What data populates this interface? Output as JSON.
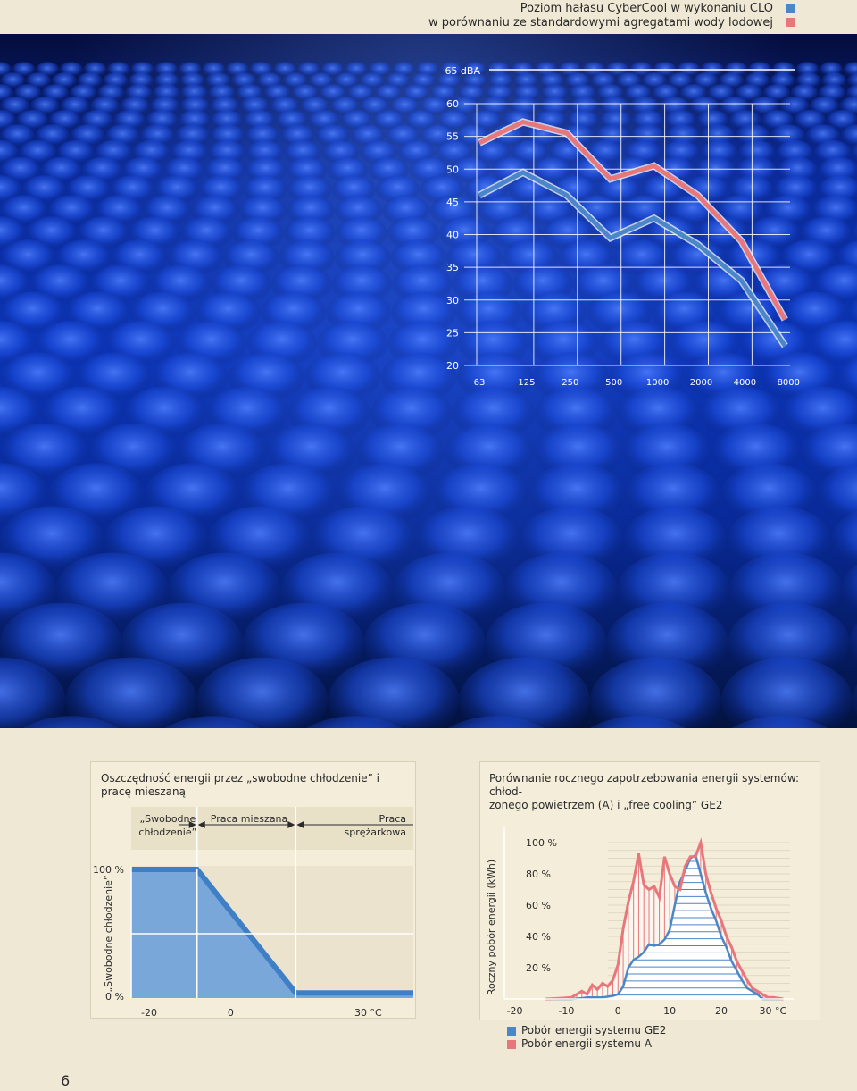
{
  "header": {
    "title_line1": "Poziom hałasu CyberCool w wykonaniu CLO",
    "title_line2": "w porównaniu ze standardowymi agregatami wody lodowej",
    "legend_colors": [
      "#4a86c8",
      "#e8767a"
    ]
  },
  "page_number": "6",
  "chart_data": [
    {
      "type": "line",
      "title": "Poziom hałasu CyberCool w wykonaniu CLO w porównaniu ze standardowymi agregatami wody lodowej",
      "ylabel_top": "65 dBA",
      "x": [
        "63",
        "125",
        "250",
        "500",
        "1000",
        "2000",
        "4000",
        "8000"
      ],
      "y_ticks": [
        60,
        55,
        50,
        45,
        40,
        35,
        30,
        25,
        20
      ],
      "ylim": [
        20,
        65
      ],
      "series": [
        {
          "color": "#e8767a",
          "values": [
            54,
            57.2,
            55.5,
            48.5,
            50.5,
            46,
            39,
            27
          ]
        },
        {
          "color": "#4a86c8",
          "values": [
            46,
            49.5,
            46,
            39.5,
            42.5,
            38.5,
            33,
            23
          ]
        }
      ]
    },
    {
      "type": "area",
      "title_line1": "Oszczędność energii przez „swobodne chłodzenie” i",
      "title_line2": "pracę mieszaną",
      "ylabel": "„Swobodne chłodzenie”",
      "y_ticks": [
        "100 %",
        "0 %"
      ],
      "x_ticks": [
        "-20",
        "0",
        "30 °C"
      ],
      "xlim": [
        -20,
        40
      ],
      "regions": [
        {
          "label_line1": "„Swobodne",
          "label_line2": "chłodzenie”"
        },
        {
          "label_line1": "Praca mieszana",
          "label_line2": ""
        },
        {
          "label_line1": "Praca",
          "label_line2": "sprężarkowa"
        }
      ],
      "x": [
        -20,
        -6,
        15,
        40
      ],
      "values": [
        100,
        100,
        4,
        4
      ]
    },
    {
      "type": "area",
      "title_line1": "Porównanie rocznego zapotrzebowania energii systemów: chłod-",
      "title_line2": "zonego powietrzem (A) i „free cooling” GE2",
      "ylabel": "Roczny pobór energii (kWh)",
      "y_ticks": [
        "100 %",
        "80 %",
        "60 %",
        "40 %",
        "20 %"
      ],
      "x_ticks": [
        "-20",
        "-10",
        "0",
        "10",
        "20",
        "30 °C"
      ],
      "xlim": [
        -22,
        34
      ],
      "ylim": [
        0,
        100
      ],
      "x": [
        -14,
        -11,
        -9,
        -7,
        -6,
        -5,
        -4,
        -3,
        -2,
        -1,
        0,
        1,
        2,
        3,
        4,
        5,
        6,
        7,
        8,
        9,
        10,
        11,
        12,
        13,
        14,
        15,
        16,
        17,
        18,
        19,
        20,
        21,
        22,
        23,
        24,
        25,
        26,
        27,
        28,
        29,
        30,
        32
      ],
      "series": [
        {
          "name": "Pobór energii systemu GE2",
          "color": "#4a86c8",
          "values": [
            0,
            0,
            0,
            0.5,
            1,
            1,
            1,
            1,
            1.5,
            2,
            3,
            8,
            20,
            25,
            27,
            30,
            35,
            34,
            35,
            38,
            44,
            60,
            75,
            82,
            90,
            92,
            80,
            68,
            58,
            50,
            40,
            33,
            24,
            18,
            12,
            7,
            5,
            3,
            0,
            0,
            0,
            0
          ]
        },
        {
          "name": "Pobór energii systemu A",
          "color": "#e8767a",
          "values": [
            0,
            0.5,
            1,
            5,
            3,
            9,
            6,
            10,
            8,
            12,
            22,
            45,
            62,
            75,
            93,
            73,
            70,
            72,
            65,
            91,
            80,
            72,
            70,
            85,
            91,
            91,
            100,
            80,
            68,
            58,
            50,
            40,
            33,
            24,
            18,
            12,
            7,
            5,
            3,
            1,
            1,
            0
          ]
        }
      ]
    }
  ],
  "bottom_legend": {
    "items": [
      {
        "label": "Pobór energii systemu GE2",
        "color": "#4a86c8"
      },
      {
        "label": "Pobór energii systemu A",
        "color": "#e8767a"
      }
    ]
  }
}
